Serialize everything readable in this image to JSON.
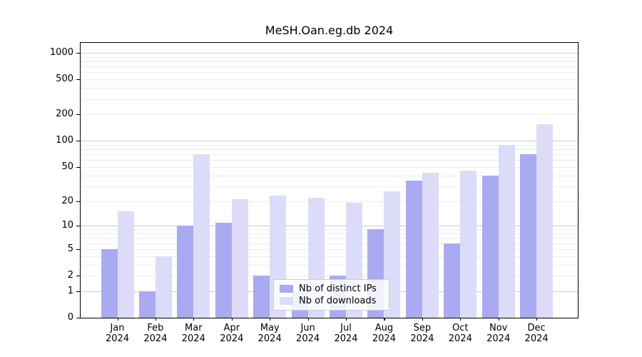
{
  "chart_data": {
    "type": "bar",
    "title": "MeSH.Oan.eg.db 2024",
    "categories": [
      "Jan",
      "Feb",
      "Mar",
      "Apr",
      "May",
      "Jun",
      "Jul",
      "Aug",
      "Sep",
      "Oct",
      "Nov",
      "Dec"
    ],
    "x_tick_second_line": "2024",
    "series": [
      {
        "name": "Nb of distinct IPs",
        "color": "#aaaaf2",
        "values": [
          5,
          1,
          10,
          11,
          2,
          1,
          2,
          9,
          35,
          6,
          40,
          70
        ]
      },
      {
        "name": "Nb of downloads",
        "color": "#dcdcf8",
        "values": [
          15,
          4,
          70,
          21,
          23,
          22,
          19,
          26,
          43,
          45,
          90,
          155
        ]
      }
    ],
    "yscale": "log1p",
    "y_ticks": [
      0,
      1,
      2,
      5,
      10,
      20,
      50,
      100,
      200,
      500,
      1000
    ],
    "major_gridline_values": [
      1,
      10,
      100,
      1000
    ],
    "ylim": [
      0,
      1200
    ],
    "grid": "horizontal-log-minor-and-major",
    "legend_position": "inside-bottom-center",
    "bar_grouping": "side-by-side-per-month"
  },
  "colors": {
    "major_grid": "#cccccc",
    "minor_grid": "#ededed",
    "spine": "#000000",
    "text": "#000000",
    "background": "#ffffff"
  }
}
